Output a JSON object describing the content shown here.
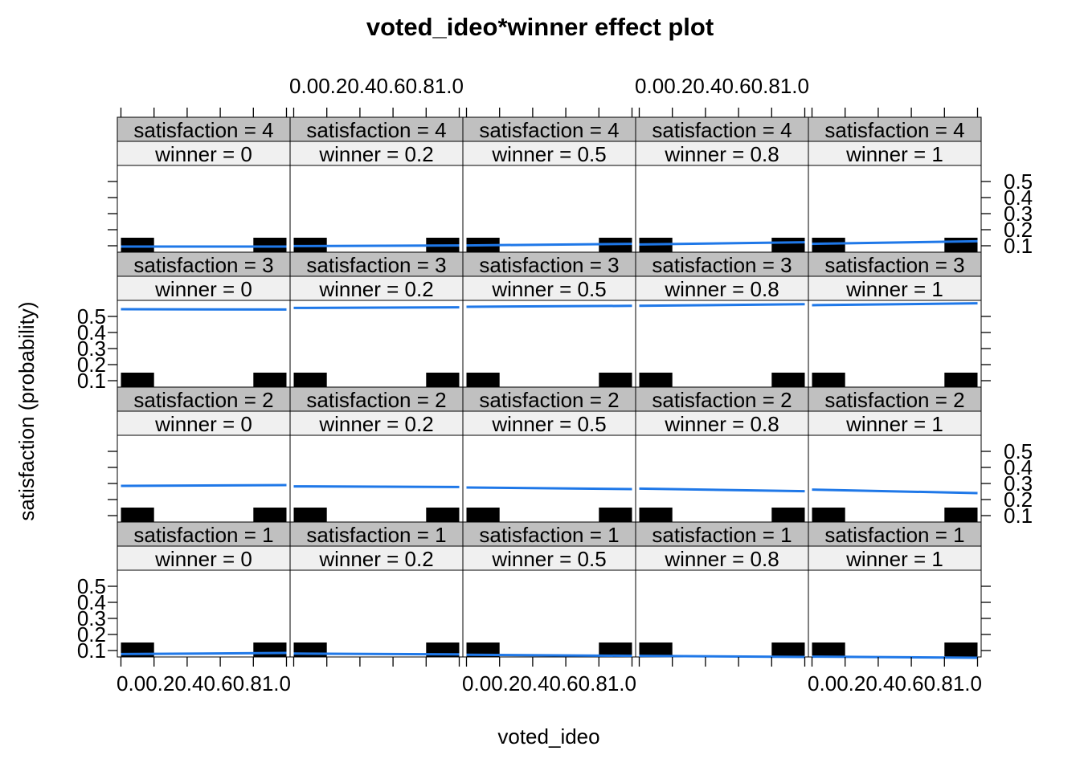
{
  "chart_data": {
    "type": "line",
    "title": "voted_ideo*winner effect plot",
    "xlabel": "voted_ideo",
    "ylabel": "satisfaction (probability)",
    "xlim": [
      0,
      1
    ],
    "ylim": [
      0.06,
      0.6
    ],
    "x_ticks": [
      0.0,
      0.2,
      0.4,
      0.6,
      0.8,
      1.0
    ],
    "x_tick_labels": [
      "0.0",
      "0.2",
      "0.4",
      "0.6",
      "0.8",
      "1.0"
    ],
    "y_ticks": [
      0.1,
      0.2,
      0.3,
      0.4,
      0.5
    ],
    "y_tick_labels": [
      "0.1",
      "0.2",
      "0.3",
      "0.4",
      "0.5"
    ],
    "x": [
      0.0,
      1.0
    ],
    "columns": [
      {
        "label": "winner = 0"
      },
      {
        "label": "winner = 0.2"
      },
      {
        "label": "winner = 0.5"
      },
      {
        "label": "winner = 0.8"
      },
      {
        "label": "winner = 1"
      }
    ],
    "rows": [
      {
        "label": "satisfaction = 4",
        "series": [
          {
            "name": "winner = 0",
            "values": [
              0.095,
              0.095
            ]
          },
          {
            "name": "winner = 0.2",
            "values": [
              0.098,
              0.102
            ]
          },
          {
            "name": "winner = 0.5",
            "values": [
              0.102,
              0.112
            ]
          },
          {
            "name": "winner = 0.8",
            "values": [
              0.108,
              0.122
            ]
          },
          {
            "name": "winner = 1",
            "values": [
              0.112,
              0.128
            ]
          }
        ]
      },
      {
        "label": "satisfaction = 3",
        "series": [
          {
            "name": "winner = 0",
            "values": [
              0.545,
              0.543
            ]
          },
          {
            "name": "winner = 0.2",
            "values": [
              0.553,
              0.557
            ]
          },
          {
            "name": "winner = 0.5",
            "values": [
              0.56,
              0.566
            ]
          },
          {
            "name": "winner = 0.8",
            "values": [
              0.566,
              0.576
            ]
          },
          {
            "name": "winner = 1",
            "values": [
              0.57,
              0.582
            ]
          }
        ]
      },
      {
        "label": "satisfaction = 2",
        "series": [
          {
            "name": "winner = 0",
            "values": [
              0.285,
              0.29
            ]
          },
          {
            "name": "winner = 0.2",
            "values": [
              0.282,
              0.278
            ]
          },
          {
            "name": "winner = 0.5",
            "values": [
              0.275,
              0.265
            ]
          },
          {
            "name": "winner = 0.8",
            "values": [
              0.268,
              0.252
            ]
          },
          {
            "name": "winner = 1",
            "values": [
              0.262,
              0.24
            ]
          }
        ]
      },
      {
        "label": "satisfaction = 1",
        "series": [
          {
            "name": "winner = 0",
            "values": [
              0.078,
              0.085
            ]
          },
          {
            "name": "winner = 0.2",
            "values": [
              0.081,
              0.076
            ]
          },
          {
            "name": "winner = 0.5",
            "values": [
              0.074,
              0.067
            ]
          },
          {
            "name": "winner = 0.8",
            "values": [
              0.067,
              0.06
            ]
          },
          {
            "name": "winner = 1",
            "values": [
              0.062,
              0.055
            ]
          }
        ]
      }
    ],
    "rug": [
      {
        "from": 0.0,
        "to": 0.2
      },
      {
        "from": 0.8,
        "to": 1.0
      }
    ],
    "colors": {
      "line": "#1f78e8",
      "strip_top": "#c0c0c0",
      "strip_bottom": "#f0f0f0",
      "rug": "#000000"
    }
  }
}
